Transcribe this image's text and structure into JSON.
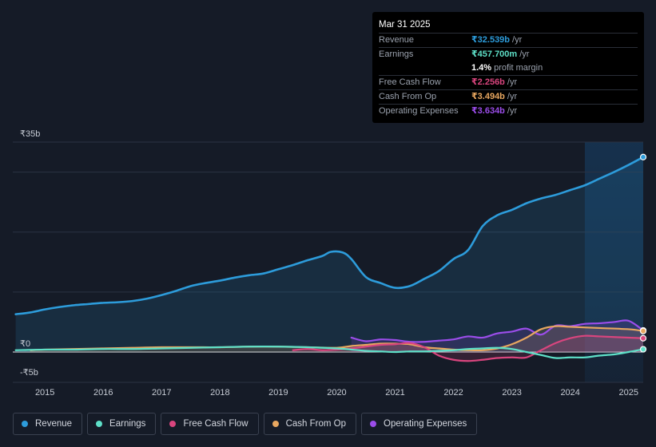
{
  "tooltip": {
    "date": "Mar 31 2025",
    "rows": [
      {
        "label": "Revenue",
        "value": "₹32.539b",
        "unit": "/yr",
        "color": "#2d9cdb"
      },
      {
        "label": "Earnings",
        "value": "₹457.700m",
        "unit": "/yr",
        "color": "#5ee0c8"
      },
      {
        "label": "",
        "value": "1.4%",
        "unit": "profit margin",
        "color": "#ffffff"
      },
      {
        "label": "Free Cash Flow",
        "value": "₹2.256b",
        "unit": "/yr",
        "color": "#d9457e"
      },
      {
        "label": "Cash From Op",
        "value": "₹3.494b",
        "unit": "/yr",
        "color": "#e8a760"
      },
      {
        "label": "Operating Expenses",
        "value": "₹3.634b",
        "unit": "/yr",
        "color": "#9b4dea"
      }
    ]
  },
  "legend": [
    {
      "label": "Revenue",
      "color": "#2d9cdb"
    },
    {
      "label": "Earnings",
      "color": "#5ee0c8"
    },
    {
      "label": "Free Cash Flow",
      "color": "#d9457e"
    },
    {
      "label": "Cash From Op",
      "color": "#e8a760"
    },
    {
      "label": "Operating Expenses",
      "color": "#9b4dea"
    }
  ],
  "chart_data": {
    "type": "line",
    "y_axis_labels": [
      "₹35b",
      "₹0",
      "-₹5b"
    ],
    "ylim": [
      -5,
      35
    ],
    "x_tick_labels": [
      "2015",
      "2016",
      "2017",
      "2018",
      "2019",
      "2020",
      "2021",
      "2022",
      "2023",
      "2024",
      "2025"
    ],
    "xlim": [
      2014.45,
      2025.25
    ],
    "highlight_start": 2024.25,
    "series": [
      {
        "name": "Revenue",
        "color": "#2d9cdb",
        "area": true,
        "points": [
          [
            2014.5,
            6.3
          ],
          [
            2014.75,
            6.6
          ],
          [
            2015.0,
            7.1
          ],
          [
            2015.25,
            7.5
          ],
          [
            2015.5,
            7.8
          ],
          [
            2015.75,
            8.0
          ],
          [
            2016.0,
            8.2
          ],
          [
            2016.25,
            8.3
          ],
          [
            2016.5,
            8.5
          ],
          [
            2016.75,
            8.9
          ],
          [
            2017.0,
            9.5
          ],
          [
            2017.25,
            10.2
          ],
          [
            2017.5,
            11.0
          ],
          [
            2017.75,
            11.5
          ],
          [
            2018.0,
            11.9
          ],
          [
            2018.25,
            12.4
          ],
          [
            2018.5,
            12.8
          ],
          [
            2018.75,
            13.1
          ],
          [
            2019.0,
            13.8
          ],
          [
            2019.25,
            14.5
          ],
          [
            2019.5,
            15.3
          ],
          [
            2019.75,
            16.0
          ],
          [
            2019.9,
            16.7
          ],
          [
            2020.1,
            16.6
          ],
          [
            2020.25,
            15.5
          ],
          [
            2020.5,
            12.5
          ],
          [
            2020.75,
            11.5
          ],
          [
            2021.0,
            10.7
          ],
          [
            2021.25,
            11.0
          ],
          [
            2021.5,
            12.2
          ],
          [
            2021.75,
            13.5
          ],
          [
            2022.0,
            15.5
          ],
          [
            2022.25,
            17.0
          ],
          [
            2022.5,
            21.0
          ],
          [
            2022.75,
            22.8
          ],
          [
            2023.0,
            23.7
          ],
          [
            2023.25,
            24.8
          ],
          [
            2023.5,
            25.6
          ],
          [
            2023.75,
            26.2
          ],
          [
            2024.0,
            27.0
          ],
          [
            2024.25,
            27.8
          ],
          [
            2024.5,
            28.9
          ],
          [
            2024.75,
            30.0
          ],
          [
            2025.0,
            31.2
          ],
          [
            2025.25,
            32.5
          ]
        ]
      },
      {
        "name": "Operating Expenses",
        "color": "#9b4dea",
        "area": true,
        "points": [
          [
            2020.25,
            2.4
          ],
          [
            2020.5,
            1.8
          ],
          [
            2020.75,
            2.1
          ],
          [
            2021.0,
            2.0
          ],
          [
            2021.25,
            1.7
          ],
          [
            2021.5,
            1.7
          ],
          [
            2021.75,
            1.9
          ],
          [
            2022.0,
            2.1
          ],
          [
            2022.25,
            2.6
          ],
          [
            2022.5,
            2.4
          ],
          [
            2022.75,
            3.1
          ],
          [
            2023.0,
            3.4
          ],
          [
            2023.25,
            3.9
          ],
          [
            2023.5,
            2.9
          ],
          [
            2023.75,
            4.4
          ],
          [
            2024.0,
            4.3
          ],
          [
            2024.25,
            4.7
          ],
          [
            2024.5,
            4.8
          ],
          [
            2024.75,
            5.0
          ],
          [
            2025.0,
            5.2
          ],
          [
            2025.25,
            3.6
          ]
        ]
      },
      {
        "name": "Cash From Op",
        "color": "#e8a760",
        "area": true,
        "points": [
          [
            2014.75,
            0.3
          ],
          [
            2015.0,
            0.4
          ],
          [
            2015.5,
            0.5
          ],
          [
            2016.0,
            0.6
          ],
          [
            2016.5,
            0.7
          ],
          [
            2017.0,
            0.8
          ],
          [
            2017.5,
            0.8
          ],
          [
            2018.0,
            0.8
          ],
          [
            2018.5,
            0.9
          ],
          [
            2019.0,
            0.9
          ],
          [
            2019.5,
            0.8
          ],
          [
            2020.0,
            0.7
          ],
          [
            2020.25,
            1.0
          ],
          [
            2020.5,
            1.2
          ],
          [
            2020.75,
            1.4
          ],
          [
            2021.0,
            1.4
          ],
          [
            2021.25,
            1.3
          ],
          [
            2021.5,
            0.8
          ],
          [
            2021.75,
            0.6
          ],
          [
            2022.0,
            0.4
          ],
          [
            2022.25,
            0.3
          ],
          [
            2022.5,
            0.3
          ],
          [
            2022.75,
            0.6
          ],
          [
            2023.0,
            1.3
          ],
          [
            2023.25,
            2.4
          ],
          [
            2023.5,
            3.8
          ],
          [
            2023.75,
            4.3
          ],
          [
            2024.0,
            4.2
          ],
          [
            2024.5,
            4.0
          ],
          [
            2025.0,
            3.8
          ],
          [
            2025.25,
            3.5
          ]
        ]
      },
      {
        "name": "Free Cash Flow",
        "color": "#d9457e",
        "area": true,
        "points": [
          [
            2019.25,
            0.3
          ],
          [
            2019.5,
            0.5
          ],
          [
            2019.75,
            0.3
          ],
          [
            2020.0,
            0.4
          ],
          [
            2020.25,
            0.6
          ],
          [
            2020.5,
            0.9
          ],
          [
            2020.75,
            1.2
          ],
          [
            2021.0,
            1.3
          ],
          [
            2021.25,
            1.5
          ],
          [
            2021.5,
            0.8
          ],
          [
            2021.75,
            -0.6
          ],
          [
            2022.0,
            -1.3
          ],
          [
            2022.25,
            -1.5
          ],
          [
            2022.5,
            -1.3
          ],
          [
            2022.75,
            -1.0
          ],
          [
            2023.0,
            -0.9
          ],
          [
            2023.25,
            -0.9
          ],
          [
            2023.5,
            0.3
          ],
          [
            2023.75,
            1.5
          ],
          [
            2024.0,
            2.3
          ],
          [
            2024.25,
            2.7
          ],
          [
            2024.5,
            2.6
          ],
          [
            2025.0,
            2.4
          ],
          [
            2025.25,
            2.3
          ]
        ]
      },
      {
        "name": "Earnings",
        "color": "#5ee0c8",
        "area": false,
        "points": [
          [
            2014.5,
            0.3
          ],
          [
            2015.0,
            0.4
          ],
          [
            2015.5,
            0.4
          ],
          [
            2016.0,
            0.5
          ],
          [
            2016.5,
            0.5
          ],
          [
            2017.0,
            0.6
          ],
          [
            2017.5,
            0.7
          ],
          [
            2018.0,
            0.8
          ],
          [
            2018.5,
            0.9
          ],
          [
            2019.0,
            0.9
          ],
          [
            2019.5,
            0.8
          ],
          [
            2020.0,
            0.6
          ],
          [
            2020.5,
            0.2
          ],
          [
            2020.75,
            0.1
          ],
          [
            2021.0,
            0.0
          ],
          [
            2021.25,
            0.1
          ],
          [
            2021.5,
            0.1
          ],
          [
            2021.75,
            0.2
          ],
          [
            2022.0,
            0.3
          ],
          [
            2022.25,
            0.5
          ],
          [
            2022.5,
            0.6
          ],
          [
            2022.75,
            0.7
          ],
          [
            2023.0,
            0.5
          ],
          [
            2023.25,
            0.0
          ],
          [
            2023.5,
            -0.5
          ],
          [
            2023.75,
            -1.0
          ],
          [
            2024.0,
            -0.9
          ],
          [
            2024.25,
            -0.9
          ],
          [
            2024.5,
            -0.6
          ],
          [
            2024.75,
            -0.4
          ],
          [
            2025.0,
            0.0
          ],
          [
            2025.25,
            0.46
          ]
        ]
      }
    ]
  }
}
